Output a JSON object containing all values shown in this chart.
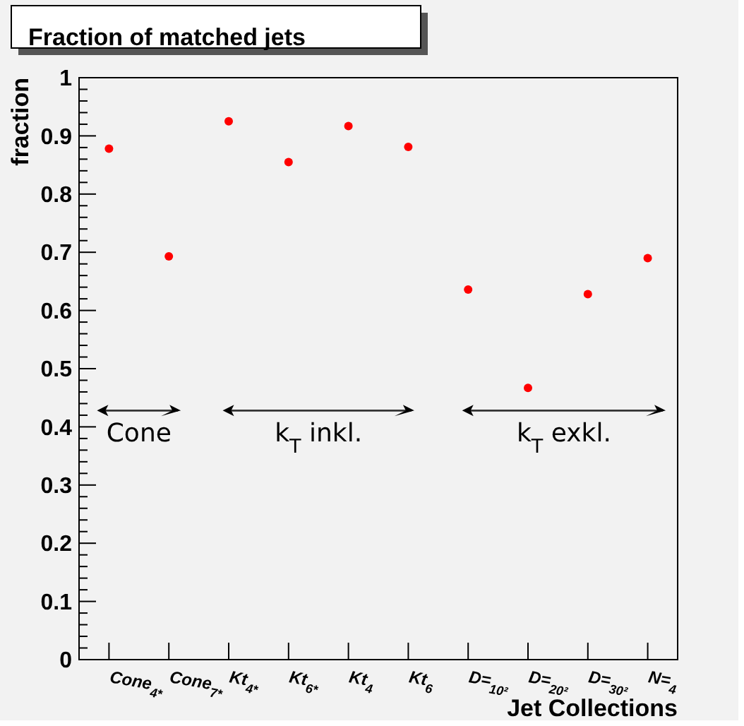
{
  "chart_data": {
    "type": "scatter",
    "title": "Fraction of matched jets",
    "xlabel": "Jet Collections",
    "ylabel": "fraction",
    "categories": [
      "Cone$_{4*}$",
      "Cone$_{7*}$",
      "Kt$_{4*}$",
      "Kt$_{6*}$",
      "Kt$_{4}$",
      "Kt$_{6}$",
      "D=$_{10²}$",
      "D=$_{20²}$",
      "D=$_{30²}$",
      "N=$_{4}$"
    ],
    "series": [
      {
        "color": "#ff0000",
        "values": [
          0.878,
          0.693,
          0.925,
          0.855,
          0.917,
          0.881,
          0.636,
          0.467,
          0.628,
          0.69
        ]
      }
    ],
    "marker": "circle",
    "grid": false,
    "ylim": [
      0,
      1
    ],
    "yticks": [
      0,
      {
        "value": 0.02,
        "label": null
      },
      {
        "value": 0.04,
        "label": null
      },
      {
        "value": 0.06,
        "label": null
      },
      {
        "value": 0.08,
        "label": null
      },
      0.1,
      {
        "value": 0.12,
        "label": null
      },
      {
        "value": 0.14,
        "label": null
      },
      {
        "value": 0.16,
        "label": null
      },
      {
        "value": 0.18,
        "label": null
      },
      0.2,
      {
        "value": 0.22,
        "label": null
      },
      {
        "value": 0.24,
        "label": null
      },
      {
        "value": 0.26,
        "label": null
      },
      {
        "value": 0.28,
        "label": null
      },
      0.3,
      {
        "value": 0.32,
        "label": null
      },
      {
        "value": 0.34,
        "label": null
      },
      {
        "value": 0.36,
        "label": null
      },
      {
        "value": 0.38,
        "label": null
      },
      0.4,
      {
        "value": 0.42,
        "label": null
      },
      {
        "value": 0.44,
        "label": null
      },
      {
        "value": 0.46,
        "label": null
      },
      {
        "value": 0.48,
        "label": null
      },
      0.5,
      {
        "value": 0.52,
        "label": null
      },
      {
        "value": 0.54,
        "label": null
      },
      {
        "value": 0.56,
        "label": null
      },
      {
        "value": 0.58,
        "label": null
      },
      0.6,
      {
        "value": 0.62,
        "label": null
      },
      {
        "value": 0.64,
        "label": null
      },
      {
        "value": 0.66,
        "label": null
      },
      {
        "value": 0.68,
        "label": null
      },
      0.7,
      {
        "value": 0.72,
        "label": null
      },
      {
        "value": 0.74,
        "label": null
      },
      {
        "value": 0.76,
        "label": null
      },
      {
        "value": 0.78,
        "label": null
      },
      0.8,
      {
        "value": 0.82,
        "label": null
      },
      {
        "value": 0.84,
        "label": null
      },
      {
        "value": 0.86,
        "label": null
      },
      {
        "value": 0.88,
        "label": null
      },
      0.9,
      {
        "value": 0.92,
        "label": null
      },
      {
        "value": 0.94,
        "label": null
      },
      {
        "value": 0.96,
        "label": null
      },
      {
        "value": 0.98,
        "label": null
      },
      1
    ],
    "annotations": [
      "Cone",
      "k$_{T}$ inkl.",
      "k$_{T}$ exkl."
    ]
  }
}
